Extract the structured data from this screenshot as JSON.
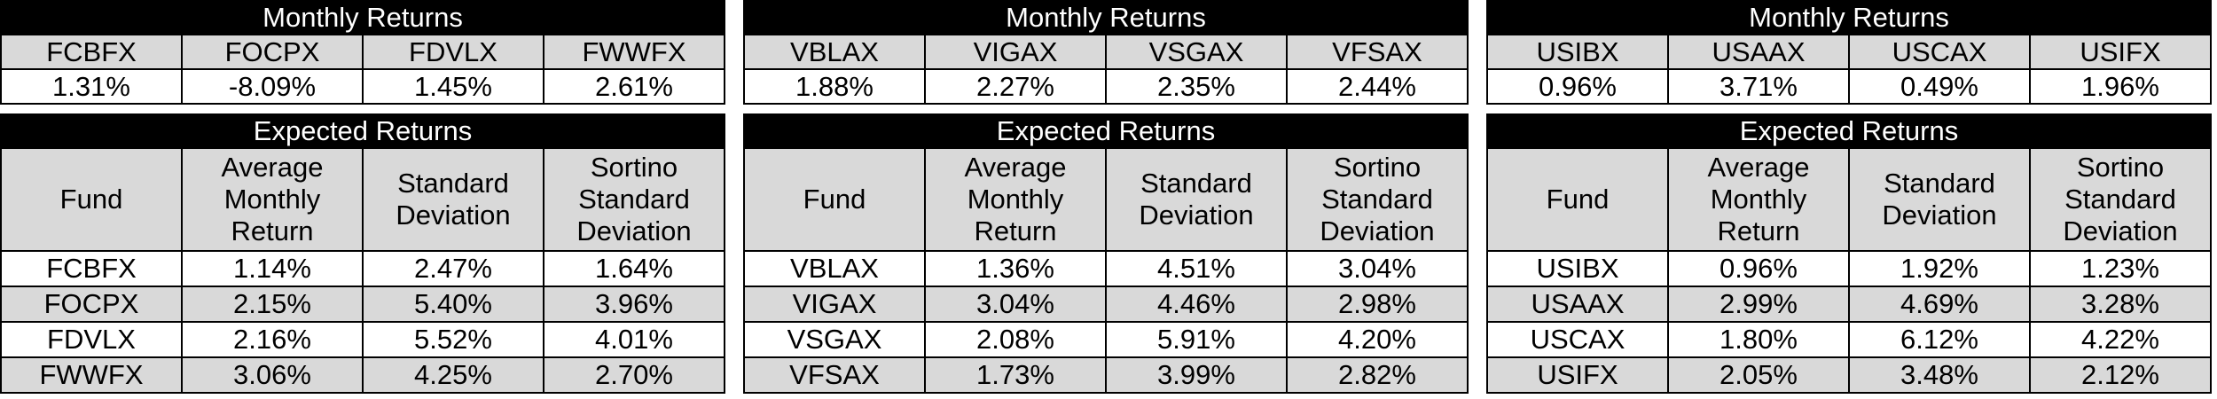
{
  "panels": [
    {
      "monthly_title": "Monthly Returns",
      "tickers": [
        "FCBFX",
        "FOCPX",
        "FDVLX",
        "FWWFX"
      ],
      "monthly_values": [
        "1.31%",
        "-8.09%",
        "1.45%",
        "2.61%"
      ],
      "expected_title": "Expected Returns",
      "headers": [
        "Fund",
        "Average Monthly Return",
        "Standard Deviation",
        "Sortino Standard Deviation"
      ],
      "rows": [
        [
          "FCBFX",
          "1.14%",
          "2.47%",
          "1.64%"
        ],
        [
          "FOCPX",
          "2.15%",
          "5.40%",
          "3.96%"
        ],
        [
          "FDVLX",
          "2.16%",
          "5.52%",
          "4.01%"
        ],
        [
          "FWWFX",
          "3.06%",
          "4.25%",
          "2.70%"
        ]
      ]
    },
    {
      "monthly_title": "Monthly Returns",
      "tickers": [
        "VBLAX",
        "VIGAX",
        "VSGAX",
        "VFSAX"
      ],
      "monthly_values": [
        "1.88%",
        "2.27%",
        "2.35%",
        "2.44%"
      ],
      "expected_title": "Expected Returns",
      "headers": [
        "Fund",
        "Average Monthly Return",
        "Standard Deviation",
        "Sortino Standard Deviation"
      ],
      "rows": [
        [
          "VBLAX",
          "1.36%",
          "4.51%",
          "3.04%"
        ],
        [
          "VIGAX",
          "3.04%",
          "4.46%",
          "2.98%"
        ],
        [
          "VSGAX",
          "2.08%",
          "5.91%",
          "4.20%"
        ],
        [
          "VFSAX",
          "1.73%",
          "3.99%",
          "2.82%"
        ]
      ]
    },
    {
      "monthly_title": "Monthly Returns",
      "tickers": [
        "USIBX",
        "USAAX",
        "USCAX",
        "USIFX"
      ],
      "monthly_values": [
        "0.96%",
        "3.71%",
        "0.49%",
        "1.96%"
      ],
      "expected_title": "Expected Returns",
      "headers": [
        "Fund",
        "Average Monthly Return",
        "Standard Deviation",
        "Sortino Standard Deviation"
      ],
      "rows": [
        [
          "USIBX",
          "0.96%",
          "1.92%",
          "1.23%"
        ],
        [
          "USAAX",
          "2.99%",
          "4.69%",
          "3.28%"
        ],
        [
          "USCAX",
          "1.80%",
          "6.12%",
          "4.22%"
        ],
        [
          "USIFX",
          "2.05%",
          "3.48%",
          "2.12%"
        ]
      ]
    }
  ]
}
